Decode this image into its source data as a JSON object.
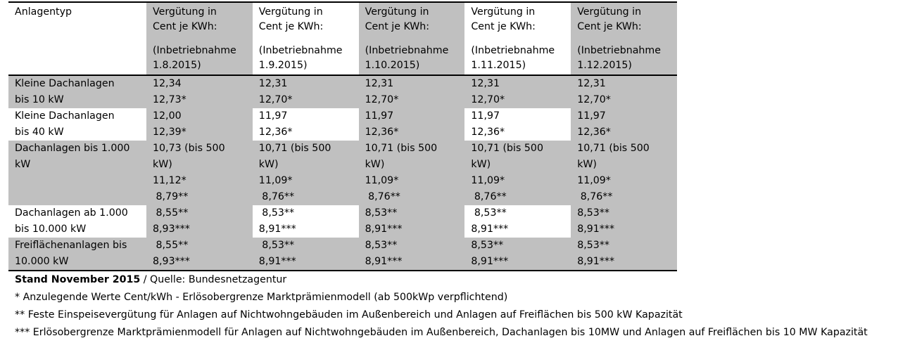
{
  "table": {
    "header": {
      "first": "Anlagentyp",
      "columns": [
        {
          "l1": "Vergütung in",
          "l2": "Cent je KWh:",
          "l3": "(Inbetriebnahme",
          "l4": "1.8.2015)"
        },
        {
          "l1": "Vergütung in",
          "l2": "Cent je KWh:",
          "l3": "(Inbetriebnahme",
          "l4": "1.9.2015)"
        },
        {
          "l1": "Vergütung in",
          "l2": "Cent je KWh:",
          "l3": "(Inbetriebnahme",
          "l4": "1.10.2015)"
        },
        {
          "l1": "Vergütung in",
          "l2": "Cent je KWh:",
          "l3": "(Inbetriebnahme",
          "l4": "1.11.2015)"
        },
        {
          "l1": "Vergütung in",
          "l2": "Cent je KWh:",
          "l3": "(Inbetriebnahme",
          "l4": "1.12.2015)"
        }
      ]
    },
    "rows": [
      {
        "label": [
          "Kleine Dachanlagen",
          "bis 10 kW"
        ],
        "cells": [
          [
            "12,34",
            "12,73*"
          ],
          [
            "12,31",
            "12,70*"
          ],
          [
            "12,31",
            "12,70*"
          ],
          [
            "12,31",
            "12,70*"
          ],
          [
            "12,31",
            "12,70*"
          ]
        ]
      },
      {
        "label": [
          "Kleine Dachanlagen",
          "bis 40 kW"
        ],
        "cells": [
          [
            "12,00",
            "12,39*"
          ],
          [
            "11,97",
            "12,36*"
          ],
          [
            "11,97",
            "12,36*"
          ],
          [
            "11,97",
            "12,36*"
          ],
          [
            "11,97",
            "12,36*"
          ]
        ]
      },
      {
        "label": [
          "Dachanlagen bis 1.000",
          "kW"
        ],
        "cells": [
          [
            "10,73 (bis 500",
            "kW)",
            "11,12*",
            " 8,79**"
          ],
          [
            "10,71 (bis 500",
            "kW)",
            "11,09*",
            " 8,76**"
          ],
          [
            "10,71 (bis 500",
            "kW)",
            "11,09*",
            " 8,76**"
          ],
          [
            "10,71 (bis 500",
            "kW)",
            "11,09*",
            " 8,76**"
          ],
          [
            "10,71 (bis 500",
            "kW)",
            "11,09*",
            " 8,76**"
          ]
        ]
      },
      {
        "label": [
          "Dachanlagen ab 1.000",
          "bis 10.000 kW"
        ],
        "cells": [
          [
            " 8,55**",
            "8,93***"
          ],
          [
            " 8,53**",
            "8,91***"
          ],
          [
            "8,53**",
            "8,91***"
          ],
          [
            " 8,53**",
            "8,91***"
          ],
          [
            "8,53**",
            "8,91***"
          ]
        ]
      },
      {
        "label": [
          "Freiflächenanlagen bis",
          "10.000 kW"
        ],
        "cells": [
          [
            " 8,55**",
            "8,93***"
          ],
          [
            " 8,53**",
            "8,91***"
          ],
          [
            "8,53**",
            "8,91***"
          ],
          [
            "8,53**",
            "8,91***"
          ],
          [
            "8,53**",
            "8,91***"
          ]
        ]
      }
    ],
    "colors": {
      "gray": "#c0c0c0",
      "white": "#ffffff"
    }
  },
  "notes": {
    "stand_bold": "Stand  November 2015",
    "stand_rest": " / Quelle: Bundesnetzagentur",
    "note1": "* Anzulegende  Werte Cent/kWh - Erlösobergrenze  Marktprämienmodell  (ab 500kWp verpflichtend)",
    "note2": "** Feste  Einspeisevergütung  für Anlagen auf Nichtwohngebäuden  im Außenbereich  und Anlagen auf Freiflächen  bis 500 kW Kapazität",
    "note3": "*** Erlösobergrenze Marktprämienmodell  für Anlagen auf Nichtwohngebäuden  im Außenbereich,  Dachanlagen bis 10MW und Anlagen auf Freiflächen  bis 10 MW Kapazität"
  }
}
